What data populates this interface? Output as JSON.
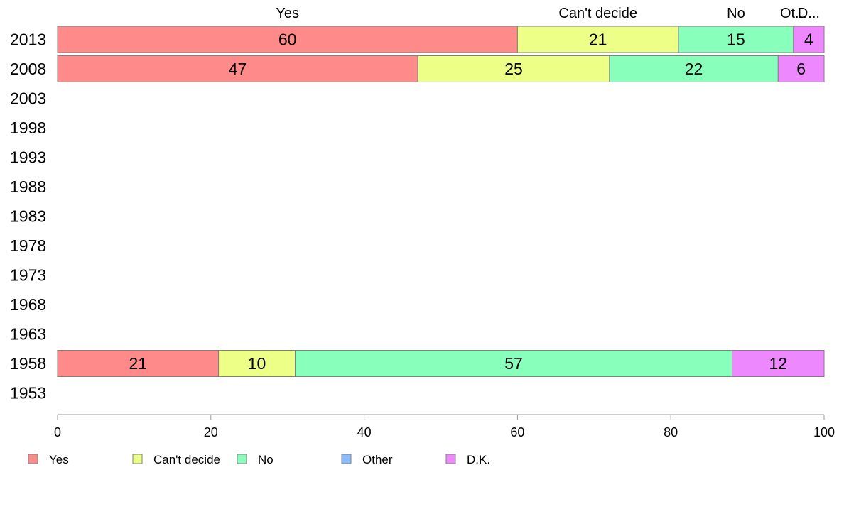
{
  "chart_data": {
    "type": "bar",
    "orientation": "horizontal",
    "stacked": true,
    "categories": [
      "2013",
      "2008",
      "2003",
      "1998",
      "1993",
      "1988",
      "1983",
      "1978",
      "1973",
      "1968",
      "1963",
      "1958",
      "1953"
    ],
    "series": [
      {
        "name": "Yes",
        "color": "#ff8a8a",
        "values": [
          60,
          47,
          null,
          null,
          null,
          null,
          null,
          null,
          null,
          null,
          null,
          21,
          null
        ]
      },
      {
        "name": "Can't decide",
        "color": "#eeff88",
        "values": [
          21,
          25,
          null,
          null,
          null,
          null,
          null,
          null,
          null,
          null,
          null,
          10,
          null
        ]
      },
      {
        "name": "No",
        "color": "#88ffbb",
        "values": [
          15,
          22,
          null,
          null,
          null,
          null,
          null,
          null,
          null,
          null,
          null,
          57,
          null
        ]
      },
      {
        "name": "Other",
        "color": "#88bbff",
        "values": [
          null,
          null,
          null,
          null,
          null,
          null,
          null,
          null,
          null,
          null,
          null,
          null,
          null
        ]
      },
      {
        "name": "D.K.",
        "color": "#ee88ff",
        "values": [
          4,
          6,
          null,
          null,
          null,
          null,
          null,
          null,
          null,
          null,
          null,
          12,
          null
        ]
      }
    ],
    "top_labels": [
      "Yes",
      "Can't decide",
      "No",
      "Ot...",
      "D..."
    ],
    "xlim": [
      0,
      100
    ],
    "x_ticks": [
      "0",
      "20",
      "40",
      "60",
      "80",
      "100"
    ],
    "grid": false,
    "legend_position": "bottom",
    "bar_stroke_color": "#808080",
    "axis_color": "#999999"
  }
}
